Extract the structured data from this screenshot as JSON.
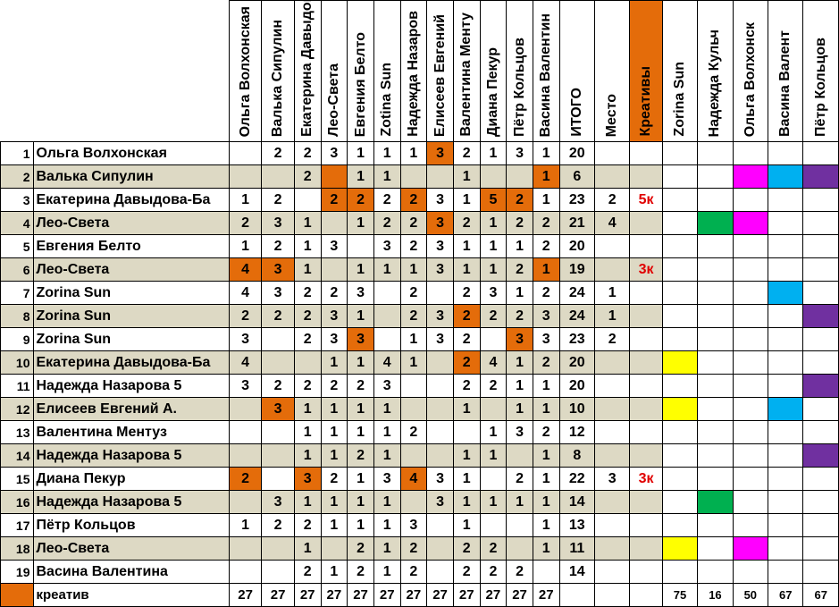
{
  "header": {
    "judges": [
      "Ольга Волхонская",
      "Валька Сипулин",
      "Екатерина Давыдова",
      "Лео-Света",
      "Евгения Белто",
      "Zotina Sun",
      "Надежда Назаров",
      "Елисеев Евгений",
      "Валентина Менту",
      "Диана Пекур",
      "Пётр Кольцов",
      "Васина Валентин"
    ],
    "total": "ИТОГО",
    "place": "Место",
    "creative": "Креативы",
    "extra": [
      "Zorina Sun",
      "Надежда Кульч",
      "Ольга Волхонск",
      "Васина Валент",
      "Пётр Кольцов"
    ]
  },
  "rows": [
    {
      "n": "1",
      "name": "Ольга Волхонская",
      "s": [
        "",
        "2",
        "2",
        "3",
        "1",
        "1",
        "1",
        "3",
        "2",
        "1",
        "3",
        "1"
      ],
      "hi": [
        7
      ],
      "total": "20",
      "place": "",
      "cre": "",
      "ext": [
        "",
        "",
        "",
        "",
        ""
      ]
    },
    {
      "n": "2",
      "name": "Валька Сипулин",
      "s": [
        "",
        "",
        "2",
        "",
        "1",
        "1",
        "",
        "",
        "1",
        "",
        "",
        "1"
      ],
      "hi": [
        3,
        11
      ],
      "total": "6",
      "place": "",
      "cre": "",
      "ext": [
        "",
        "",
        "M",
        "B",
        "P"
      ]
    },
    {
      "n": "3",
      "name": "Екатерина Давыдова-Ба",
      "s": [
        "1",
        "2",
        "",
        "2",
        "2",
        "2",
        "2",
        "3",
        "1",
        "5",
        "2",
        "1"
      ],
      "hi": [
        3,
        4,
        6,
        9,
        10
      ],
      "total": "23",
      "place": "2",
      "cre": "5к",
      "ext": [
        "",
        "",
        "",
        "",
        ""
      ]
    },
    {
      "n": "4",
      "name": "Лео-Света",
      "s": [
        "2",
        "3",
        "1",
        "",
        "1",
        "2",
        "2",
        "3",
        "2",
        "1",
        "2",
        "2"
      ],
      "hi": [
        7
      ],
      "total": "21",
      "place": "4",
      "cre": "",
      "ext": [
        "",
        "G",
        "M",
        "",
        ""
      ]
    },
    {
      "n": "5",
      "name": "Евгения Белто",
      "s": [
        "1",
        "2",
        "1",
        "3",
        "",
        "3",
        "2",
        "3",
        "1",
        "1",
        "1",
        "2"
      ],
      "hi": [],
      "total": "20",
      "place": "",
      "cre": "",
      "ext": [
        "",
        "",
        "",
        "",
        ""
      ]
    },
    {
      "n": "6",
      "name": "Лео-Света",
      "s": [
        "4",
        "3",
        "1",
        "",
        "1",
        "1",
        "1",
        "3",
        "1",
        "1",
        "2",
        "1"
      ],
      "hi": [
        0,
        1,
        11
      ],
      "total": "19",
      "place": "",
      "cre": "3к",
      "ext": [
        "",
        "",
        "",
        "",
        ""
      ]
    },
    {
      "n": "7",
      "name": "Zorina Sun",
      "s": [
        "4",
        "3",
        "2",
        "2",
        "3",
        "",
        "2",
        "",
        "2",
        "3",
        "1",
        "2"
      ],
      "hi": [],
      "total": "24",
      "place": "1",
      "cre": "",
      "ext": [
        "",
        "",
        "",
        "B",
        ""
      ]
    },
    {
      "n": "8",
      "name": "Zorina Sun",
      "s": [
        "2",
        "2",
        "2",
        "3",
        "1",
        "",
        "2",
        "3",
        "2",
        "2",
        "2",
        "3"
      ],
      "hi": [
        8
      ],
      "total": "24",
      "place": "1",
      "cre": "",
      "ext": [
        "",
        "",
        "",
        "",
        "P"
      ]
    },
    {
      "n": "9",
      "name": "Zorina Sun",
      "s": [
        "3",
        "",
        "2",
        "3",
        "3",
        "",
        "1",
        "3",
        "2",
        "",
        "3",
        "3"
      ],
      "hi": [
        4,
        10
      ],
      "total": "23",
      "place": "2",
      "cre": "",
      "ext": [
        "",
        "",
        "",
        "",
        ""
      ]
    },
    {
      "n": "10",
      "name": "Екатерина Давыдова-Ба",
      "s": [
        "4",
        "",
        "",
        "1",
        "1",
        "4",
        "1",
        "",
        "2",
        "4",
        "1",
        "2"
      ],
      "hi": [
        8
      ],
      "total": "20",
      "place": "",
      "cre": "",
      "ext": [
        "Y",
        "",
        "",
        "",
        ""
      ]
    },
    {
      "n": "11",
      "name": "Надежда Назарова 5",
      "s": [
        "3",
        "2",
        "2",
        "2",
        "2",
        "3",
        "",
        "",
        "2",
        "2",
        "1",
        "1"
      ],
      "hi": [],
      "total": "20",
      "place": "",
      "cre": "",
      "ext": [
        "",
        "",
        "",
        "",
        "P"
      ]
    },
    {
      "n": "12",
      "name": "Елисеев Евгений А.",
      "s": [
        "",
        "3",
        "1",
        "1",
        "1",
        "1",
        "",
        "",
        "1",
        "",
        "1",
        "1"
      ],
      "hi": [
        1
      ],
      "total": "10",
      "place": "",
      "cre": "",
      "ext": [
        "Y",
        "",
        "",
        "B",
        ""
      ]
    },
    {
      "n": "13",
      "name": "Валентина Ментуз",
      "s": [
        "",
        "",
        "1",
        "1",
        "1",
        "1",
        "2",
        "",
        "",
        "1",
        "3",
        "2"
      ],
      "hi": [],
      "total": "12",
      "place": "",
      "cre": "",
      "ext": [
        "",
        "",
        "",
        "",
        ""
      ]
    },
    {
      "n": "14",
      "name": "Надежда Назарова 5",
      "s": [
        "",
        "",
        "1",
        "1",
        "2",
        "1",
        "",
        "",
        "1",
        "1",
        "",
        "1"
      ],
      "hi": [],
      "total": "8",
      "place": "",
      "cre": "",
      "ext": [
        "",
        "",
        "",
        "",
        "P"
      ]
    },
    {
      "n": "15",
      "name": "Диана Пекур",
      "s": [
        "2",
        "",
        "3",
        "2",
        "1",
        "3",
        "4",
        "3",
        "1",
        "",
        "2",
        "1"
      ],
      "hi": [
        0,
        2,
        6
      ],
      "total": "22",
      "place": "3",
      "cre": "3к",
      "ext": [
        "",
        "",
        "",
        "",
        ""
      ]
    },
    {
      "n": "16",
      "name": "Надежда Назарова 5",
      "s": [
        "",
        "3",
        "1",
        "1",
        "1",
        "1",
        "",
        "3",
        "1",
        "1",
        "1",
        "1"
      ],
      "hi": [],
      "total": "14",
      "place": "",
      "cre": "",
      "ext": [
        "",
        "G",
        "",
        "",
        ""
      ]
    },
    {
      "n": "17",
      "name": "Пётр Кольцов",
      "s": [
        "1",
        "2",
        "2",
        "1",
        "1",
        "1",
        "3",
        "",
        "1",
        "",
        "",
        "1"
      ],
      "hi": [],
      "total": "13",
      "place": "",
      "cre": "",
      "ext": [
        "",
        "",
        "",
        "",
        ""
      ]
    },
    {
      "n": "18",
      "name": "Лео-Света",
      "s": [
        "",
        "",
        "1",
        "",
        "2",
        "1",
        "2",
        "",
        "2",
        "2",
        "",
        "1"
      ],
      "hi": [],
      "total": "11",
      "place": "",
      "cre": "",
      "ext": [
        "Y",
        "",
        "M",
        "",
        ""
      ]
    },
    {
      "n": "19",
      "name": "Васина Валентина",
      "s": [
        "",
        "",
        "2",
        "1",
        "2",
        "1",
        "2",
        "",
        "2",
        "2",
        "2",
        ""
      ],
      "hi": [],
      "total": "14",
      "place": "",
      "cre": "",
      "ext": [
        "",
        "",
        "",
        "",
        ""
      ]
    }
  ],
  "footer": {
    "label": "креатив",
    "totals": [
      "27",
      "27",
      "27",
      "27",
      "27",
      "27",
      "27",
      "27",
      "27",
      "27",
      "27",
      "27"
    ],
    "extra": [
      "75",
      "16",
      "50",
      "67",
      "67"
    ]
  },
  "colors": {
    "orange": "#e46c0a",
    "band": "#ddd9c4",
    "yellow": "#ffff00",
    "green": "#00b050",
    "magenta": "#ff00ff",
    "blue": "#00b0f0",
    "purple": "#7030a0",
    "red": "#e00000"
  }
}
